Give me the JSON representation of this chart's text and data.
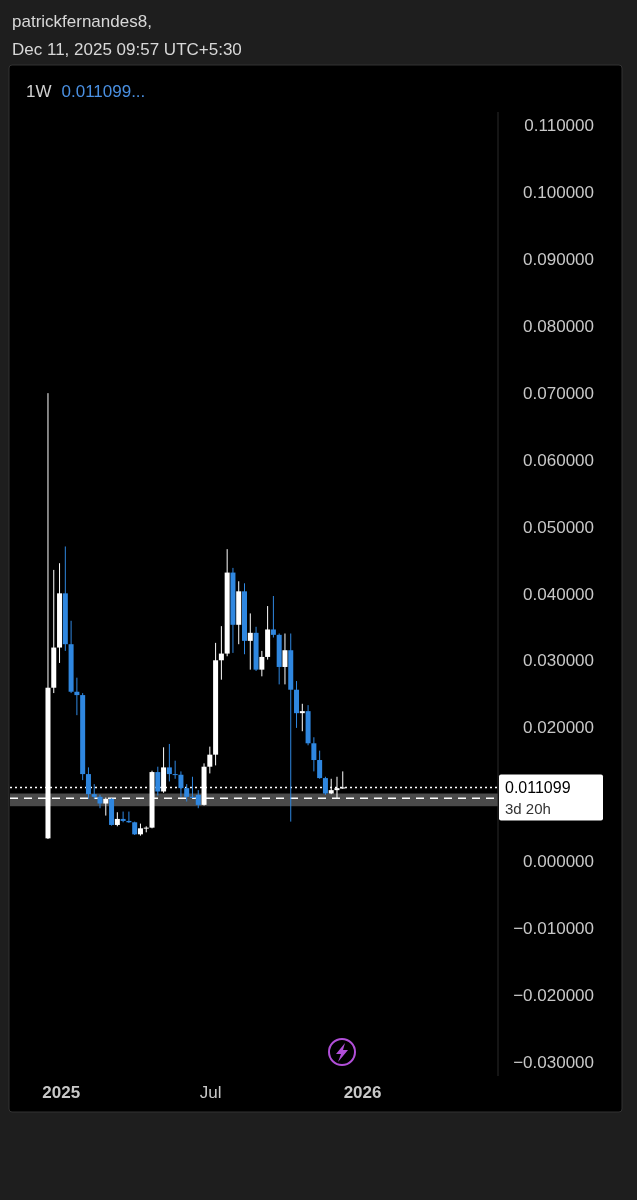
{
  "chart_data": {
    "type": "candlestick",
    "title": "1W",
    "subtitle": "0.011099...",
    "annotations": [
      "patrickfernandes8,",
      "Dec 11, 2025 09:57 UTC+5:30",
      "3d 20h"
    ],
    "x": [
      "2024-12-16",
      "2024-12-23",
      "2024-12-30",
      "2025-01-06",
      "2025-01-13",
      "2025-01-20",
      "2025-01-27",
      "2025-02-03",
      "2025-02-10",
      "2025-02-17",
      "2025-02-24",
      "2025-03-03",
      "2025-03-10",
      "2025-03-17",
      "2025-03-24",
      "2025-03-31",
      "2025-04-07",
      "2025-04-14",
      "2025-04-21",
      "2025-04-28",
      "2025-05-05",
      "2025-05-12",
      "2025-05-19",
      "2025-05-26",
      "2025-06-02",
      "2025-06-09",
      "2025-06-16",
      "2025-06-23",
      "2025-06-30",
      "2025-07-07",
      "2025-07-14",
      "2025-07-21",
      "2025-07-28",
      "2025-08-04",
      "2025-08-11",
      "2025-08-18",
      "2025-08-25",
      "2025-09-01",
      "2025-09-08",
      "2025-09-15",
      "2025-09-22",
      "2025-09-29",
      "2025-10-06",
      "2025-10-13",
      "2025-10-20",
      "2025-10-27",
      "2025-11-03",
      "2025-11-10",
      "2025-11-17",
      "2025-11-24",
      "2025-12-01",
      "2025-12-08"
    ],
    "ohlc": [
      [
        0.0035,
        0.07,
        0.0034,
        0.026
      ],
      [
        0.026,
        0.0436,
        0.0252,
        0.032
      ],
      [
        0.032,
        0.0446,
        0.0297,
        0.0401
      ],
      [
        0.0401,
        0.0471,
        0.0315,
        0.0325
      ],
      [
        0.0325,
        0.036,
        0.0252,
        0.0254
      ],
      [
        0.0254,
        0.0275,
        0.0219,
        0.0249
      ],
      [
        0.0249,
        0.0252,
        0.0122,
        0.0131
      ],
      [
        0.0131,
        0.0141,
        0.0094,
        0.0101
      ],
      [
        0.0101,
        0.0116,
        0.0094,
        0.0097
      ],
      [
        0.0097,
        0.01,
        0.008,
        0.0087
      ],
      [
        0.0087,
        0.0096,
        0.0069,
        0.0094
      ],
      [
        0.0094,
        0.0095,
        0.0054,
        0.0055
      ],
      [
        0.0055,
        0.0074,
        0.0053,
        0.0064
      ],
      [
        0.0064,
        0.0075,
        0.0059,
        0.0061
      ],
      [
        0.0061,
        0.0075,
        0.0058,
        0.0059
      ],
      [
        0.0059,
        0.006,
        0.004,
        0.0041
      ],
      [
        0.0041,
        0.0057,
        0.0039,
        0.005
      ],
      [
        0.005,
        0.0053,
        0.0044,
        0.0051
      ],
      [
        0.0051,
        0.0136,
        0.005,
        0.0134
      ],
      [
        0.0134,
        0.0142,
        0.0099,
        0.0105
      ],
      [
        0.0105,
        0.0171,
        0.0103,
        0.0141
      ],
      [
        0.0141,
        0.0176,
        0.012,
        0.0131
      ],
      [
        0.0131,
        0.0151,
        0.0124,
        0.013
      ],
      [
        0.013,
        0.0135,
        0.0097,
        0.011
      ],
      [
        0.011,
        0.0116,
        0.009,
        0.0097
      ],
      [
        0.0097,
        0.0127,
        0.0095,
        0.0096
      ],
      [
        0.01,
        0.0107,
        0.008,
        0.0085
      ],
      [
        0.0085,
        0.0147,
        0.0084,
        0.0142
      ],
      [
        0.0142,
        0.0172,
        0.0132,
        0.016
      ],
      [
        0.016,
        0.0327,
        0.0144,
        0.0301
      ],
      [
        0.0301,
        0.0352,
        0.0272,
        0.0311
      ],
      [
        0.0311,
        0.0467,
        0.0307,
        0.0432
      ],
      [
        0.0432,
        0.0439,
        0.0312,
        0.0354
      ],
      [
        0.0354,
        0.0419,
        0.0325,
        0.0404
      ],
      [
        0.0404,
        0.0416,
        0.031,
        0.033
      ],
      [
        0.033,
        0.0371,
        0.0287,
        0.0342
      ],
      [
        0.0342,
        0.0351,
        0.0285,
        0.0287
      ],
      [
        0.0287,
        0.0315,
        0.0277,
        0.0306
      ],
      [
        0.0306,
        0.0382,
        0.0302,
        0.0347
      ],
      [
        0.0347,
        0.0397,
        0.0335,
        0.0339
      ],
      [
        0.0339,
        0.0341,
        0.0265,
        0.0291
      ],
      [
        0.0291,
        0.0341,
        0.0265,
        0.0316
      ],
      [
        0.0316,
        0.0341,
        0.006,
        0.0257
      ],
      [
        0.0257,
        0.027,
        0.02,
        0.0222
      ],
      [
        0.0222,
        0.0236,
        0.0195,
        0.0225
      ],
      [
        0.0225,
        0.0234,
        0.0174,
        0.0177
      ],
      [
        0.0177,
        0.0186,
        0.0135,
        0.0152
      ],
      [
        0.0152,
        0.0166,
        0.0124,
        0.0125
      ],
      [
        0.0125,
        0.0127,
        0.01,
        0.0102
      ],
      [
        0.0102,
        0.0124,
        0.0101,
        0.0107
      ],
      [
        0.0107,
        0.0127,
        0.0094,
        0.011
      ],
      [
        0.011,
        0.0135,
        0.0109,
        0.011099
      ]
    ],
    "colors": [
      "#ffffff",
      "#ffffff",
      "#ffffff",
      "#2f87e0",
      "#2f87e0",
      "#2f87e0",
      "#2f87e0",
      "#2f87e0",
      "#2f87e0",
      "#2f87e0",
      "#ffffff",
      "#2f87e0",
      "#ffffff",
      "#2f87e0",
      "#2f87e0",
      "#2f87e0",
      "#ffffff",
      "#ffffff",
      "#ffffff",
      "#2f87e0",
      "#ffffff",
      "#2f87e0",
      "#2f87e0",
      "#2f87e0",
      "#2f87e0",
      "#2f87e0",
      "#2f87e0",
      "#ffffff",
      "#ffffff",
      "#ffffff",
      "#ffffff",
      "#ffffff",
      "#2f87e0",
      "#ffffff",
      "#2f87e0",
      "#ffffff",
      "#2f87e0",
      "#ffffff",
      "#ffffff",
      "#2f87e0",
      "#2f87e0",
      "#ffffff",
      "#2f87e0",
      "#2f87e0",
      "#ffffff",
      "#2f87e0",
      "#2f87e0",
      "#2f87e0",
      "#2f87e0",
      "#ffffff",
      "#ffffff",
      "#ffffff"
    ],
    "xlim": [
      "2024-10-31",
      "2026-06-14"
    ],
    "xticks": [
      {
        "value": "2025-01-01",
        "label": "2025"
      },
      {
        "value": "2025-07-01",
        "label": "Jul"
      },
      {
        "value": "2026-01-01",
        "label": "2026"
      }
    ],
    "ylim": [
      -0.032,
      0.112
    ],
    "yticks": [
      {
        "value": 0.11,
        "label": "0.110000"
      },
      {
        "value": 0.1,
        "label": "0.100000"
      },
      {
        "value": 0.09,
        "label": "0.090000"
      },
      {
        "value": 0.08,
        "label": "0.080000"
      },
      {
        "value": 0.07,
        "label": "0.070000"
      },
      {
        "value": 0.06,
        "label": "0.060000"
      },
      {
        "value": 0.05,
        "label": "0.050000"
      },
      {
        "value": 0.04,
        "label": "0.040000"
      },
      {
        "value": 0.03,
        "label": "0.030000"
      },
      {
        "value": 0.02,
        "label": "0.020000"
      },
      {
        "value": 0.01,
        "label": null
      },
      {
        "value": 0,
        "label": "0.000000"
      },
      {
        "value": -0.01,
        "label": "−0.010000"
      },
      {
        "value": -0.02,
        "label": "−0.020000"
      },
      {
        "value": -0.03,
        "label": "−0.030000"
      }
    ],
    "bands": [
      {
        "axis": "y",
        "from": 0.0083,
        "to": 0.0102,
        "color": "#4a4a4a"
      }
    ],
    "ref_lines": [
      {
        "axis": "y",
        "value": 0.0095,
        "color": "#ffffff",
        "line_style": "dashed"
      },
      {
        "axis": "y",
        "value": 0.011099,
        "label": "0.011099",
        "color": "#ffffff",
        "line_style": "dotted"
      }
    ],
    "grid": false
  }
}
